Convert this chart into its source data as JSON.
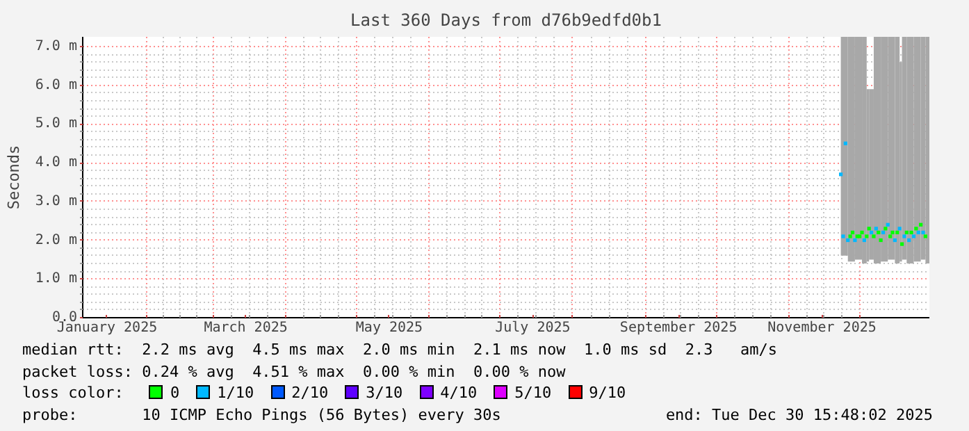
{
  "chart_data": {
    "type": "scatter",
    "title": "Last 360 Days from d76b9edfd0b1",
    "ylabel": "Seconds",
    "legend_title": "loss color:",
    "legend": "bottom",
    "grid": true,
    "marker": "square",
    "xlim": [
      "2025-01-04T15:48",
      "2025-12-30T15:48"
    ],
    "xticks": [
      {
        "value": "2025-01-15",
        "label": "January 2025"
      },
      {
        "value": "2025-03-15",
        "label": "March 2025"
      },
      {
        "value": "2025-05-15",
        "label": "May 2025"
      },
      {
        "value": "2025-07-15",
        "label": "July 2025"
      },
      {
        "value": "2025-09-15",
        "label": "September 2025"
      },
      {
        "value": "2025-11-15",
        "label": "November 2025"
      },
      {
        "value": "2025-02-01",
        "label": null
      },
      {
        "value": "2025-03-01",
        "label": null
      },
      {
        "value": "2025-04-01",
        "label": null
      },
      {
        "value": "2025-05-01",
        "label": null
      },
      {
        "value": "2025-06-01",
        "label": null
      },
      {
        "value": "2025-07-01",
        "label": null
      },
      {
        "value": "2025-08-01",
        "label": null
      },
      {
        "value": "2025-09-01",
        "label": null
      },
      {
        "value": "2025-10-01",
        "label": null
      },
      {
        "value": "2025-11-01",
        "label": null
      },
      {
        "value": "2025-12-01",
        "label": null
      }
    ],
    "ylim": [
      0,
      7.25
    ],
    "yticks": [
      {
        "value": 0,
        "label": "0.0"
      },
      {
        "value": 1,
        "label": "1.0 m"
      },
      {
        "value": 2,
        "label": "2.0 m"
      },
      {
        "value": 3,
        "label": "3.0 m"
      },
      {
        "value": 4,
        "label": "4.0 m"
      },
      {
        "value": 5,
        "label": "5.0 m"
      },
      {
        "value": 6,
        "label": "6.0 m"
      },
      {
        "value": 7,
        "label": "7.0 m"
      }
    ],
    "series": [
      {
        "type": "bar",
        "color": "#a8a8a8",
        "x": [
          "2025-11-23",
          "2025-11-26",
          "2025-11-29",
          "2025-12-02",
          "2025-12-04",
          "2025-12-05",
          "2025-12-07",
          "2025-12-10",
          "2025-12-13",
          "2025-12-16",
          "2025-12-18",
          "2025-12-19",
          "2025-12-21",
          "2025-12-24",
          "2025-12-27",
          "2025-12-29"
        ],
        "base": [
          1.6,
          1.45,
          1.5,
          1.4,
          1.45,
          1.5,
          1.4,
          1.45,
          1.5,
          1.4,
          1.45,
          1.5,
          1.4,
          1.45,
          1.5,
          1.4
        ],
        "values": [
          5.65,
          5.8,
          5.75,
          5.85,
          4.45,
          4.4,
          5.85,
          5.8,
          5.75,
          5.85,
          5.15,
          5.75,
          5.85,
          5.8,
          5.75,
          5.85
        ]
      },
      {
        "name": "0",
        "color": "#00ff00",
        "x": [
          "2025-11-27",
          "2025-11-28",
          "2025-11-30",
          "2025-12-01",
          "2025-12-02",
          "2025-12-04",
          "2025-12-05",
          "2025-12-07",
          "2025-12-09",
          "2025-12-10",
          "2025-12-12",
          "2025-12-14",
          "2025-12-15",
          "2025-12-17",
          "2025-12-19",
          "2025-12-21",
          "2025-12-23",
          "2025-12-25",
          "2025-12-27",
          "2025-12-29"
        ],
        "values": [
          2.1,
          2.2,
          2.1,
          2.1,
          2.2,
          2.1,
          2.3,
          2.1,
          2.2,
          2.0,
          2.3,
          2.1,
          2.2,
          2.2,
          1.9,
          2.2,
          2.2,
          2.3,
          2.4,
          2.1
        ]
      },
      {
        "name": "1/10",
        "color": "#00b8ff",
        "x": [
          "2025-11-23",
          "2025-11-24",
          "2025-11-25",
          "2025-11-26",
          "2025-11-29",
          "2025-12-03",
          "2025-12-06",
          "2025-12-08",
          "2025-12-11",
          "2025-12-13",
          "2025-12-16",
          "2025-12-18",
          "2025-12-20",
          "2025-12-22",
          "2025-12-24",
          "2025-12-26",
          "2025-12-28"
        ],
        "values": [
          3.7,
          2.1,
          4.5,
          2.0,
          2.0,
          2.0,
          2.2,
          2.3,
          2.2,
          2.4,
          2.0,
          2.3,
          2.1,
          2.0,
          2.1,
          2.2,
          2.2
        ]
      },
      {
        "name": "2/10",
        "color": "#0059ff"
      },
      {
        "name": "3/10",
        "color": "#5e00ff"
      },
      {
        "name": "4/10",
        "color": "#7e00ff"
      },
      {
        "name": "5/10",
        "color": "#dd00ff"
      },
      {
        "name": "9/10",
        "color": "#ff0000"
      }
    ],
    "annotations": [
      "median rtt:  2.2 ms avg  4.5 ms max  2.0 ms min  2.1 ms now  1.0 ms sd  2.3   am/s",
      "packet loss: 0.24 % avg  4.51 % max  0.00 % min  0.00 % now",
      "probe:       10 ICMP Echo Pings (56 Bytes) every 30s",
      "end: Tue Dec 30 15:48:02 2025"
    ]
  }
}
